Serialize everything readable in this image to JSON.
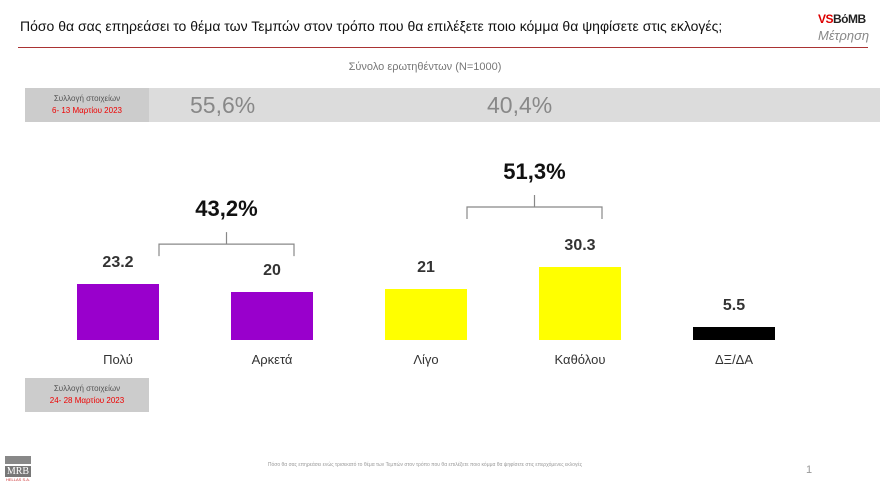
{
  "header": {
    "title": "Πόσο θα σας επηρεάσει το θέμα των Τεμπών στον τρόπο που θα επιλέξετε ποιο κόμμα θα ψηφίσετε στις εκλογές;",
    "logo_vs": "VS",
    "logo_bomb": "BόMB",
    "logo_sub": "Μέτρηση"
  },
  "subtitle": "Σύνολο ερωτηθέντων (N=1000)",
  "wave1": {
    "label": "Συλλογή στοιχείων",
    "dates": "6- 13 Μαρτίου 2023",
    "pct_a": "55,6%",
    "pct_b": "40,4%"
  },
  "wave2": {
    "label": "Συλλογή στοιχείων",
    "dates": "24- 28 Μαρτίου 2023"
  },
  "chart_data": {
    "type": "bar",
    "categories": [
      "Πολύ",
      "Αρκετά",
      "Λίγο",
      "Καθόλου",
      "ΔΞ/ΔΑ"
    ],
    "values": [
      23.2,
      20,
      21,
      30.3,
      5.5
    ],
    "value_labels": [
      "23.2",
      "20",
      "21",
      "30.3",
      "5.5"
    ],
    "colors": [
      "#9900cc",
      "#9900cc",
      "#ffff00",
      "#ffff00",
      "#000000"
    ],
    "groups": [
      {
        "label": "43,2%",
        "from": 0,
        "to": 1
      },
      {
        "label": "51,3%",
        "from": 2,
        "to": 3
      }
    ],
    "ylim": [
      0,
      35
    ]
  },
  "footer": {
    "note": "Πόσο θα σας επηρεάσει ενώς τρισεκατό το θέμα των Τεμπών στον τρόπο που θα επιλέξετε ποιο κόμμα θα ψηφίσετε στις επερχόμενες εκλογές",
    "page": "1",
    "mrb": "MRB",
    "mrb_sub": "HELLAS S.A."
  }
}
